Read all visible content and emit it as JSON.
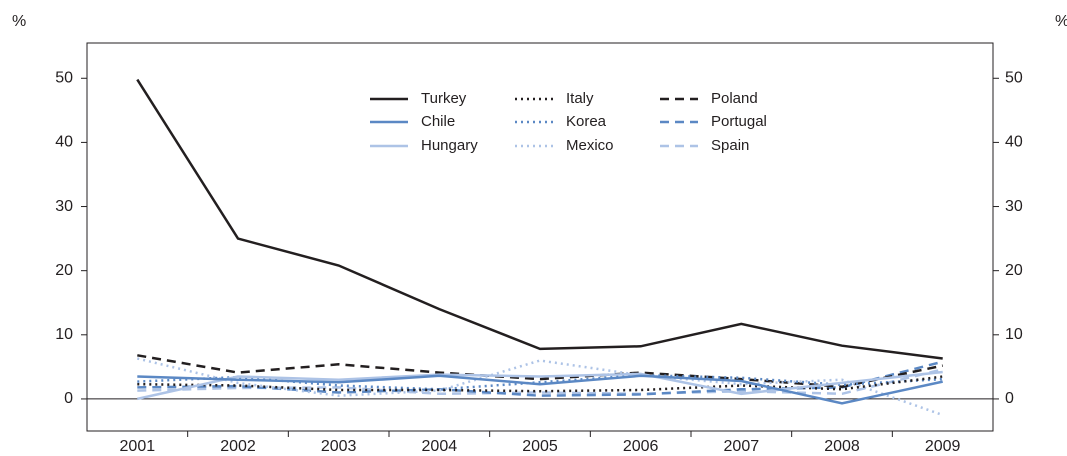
{
  "chart_data": {
    "type": "line",
    "y_label": "%",
    "y2_label": "%",
    "categories": [
      "2001",
      "2002",
      "2003",
      "2004",
      "2005",
      "2006",
      "2007",
      "2008",
      "2009"
    ],
    "ylim": [
      -5,
      55.5
    ],
    "yticks": [
      0,
      10,
      20,
      30,
      40,
      50
    ],
    "y2lim": [
      -5,
      55.5
    ],
    "y2ticks": [
      0,
      10,
      20,
      30,
      40,
      50
    ],
    "series": [
      {
        "name": "Turkey",
        "color": "#231f20",
        "dash": "solid",
        "values": [
          49.8,
          25,
          20.8,
          14,
          7.8,
          8.2,
          11.7,
          8.3,
          6.3
        ]
      },
      {
        "name": "Chile",
        "color": "#5b88c4",
        "dash": "solid",
        "values": [
          3.5,
          3,
          2.6,
          3.6,
          2.3,
          3.6,
          2.8,
          -0.7,
          2.7
        ]
      },
      {
        "name": "Hungary",
        "color": "#adc3e6",
        "dash": "solid",
        "values": [
          0,
          3.5,
          3,
          3.8,
          3.5,
          3.9,
          0.8,
          2.5,
          4.2
        ]
      },
      {
        "name": "Italy",
        "color": "#231f20",
        "dash": "dotted",
        "values": [
          2.3,
          2.1,
          1.4,
          1.4,
          1.2,
          1.4,
          2.1,
          1.5,
          3.5
        ]
      },
      {
        "name": "Korea",
        "color": "#5b88c4",
        "dash": "dotted",
        "values": [
          2.7,
          3.4,
          2.1,
          1.5,
          2.6,
          3.7,
          3.3,
          2.2,
          3.1
        ]
      },
      {
        "name": "Mexico",
        "color": "#adc3e6",
        "dash": "dotted",
        "values": [
          6.3,
          2.5,
          0.5,
          1.3,
          6,
          3.7,
          2.3,
          3,
          -2.5
        ]
      },
      {
        "name": "Poland",
        "color": "#231f20",
        "dash": "dashed",
        "values": [
          6.8,
          4.1,
          5.4,
          4.1,
          3.1,
          4.1,
          3.1,
          1.9,
          5.2
        ]
      },
      {
        "name": "Portugal",
        "color": "#5b88c4",
        "dash": "dashed",
        "values": [
          1.8,
          2,
          1,
          1.5,
          0.5,
          0.7,
          1.5,
          1.8,
          5.8
        ]
      },
      {
        "name": "Spain",
        "color": "#adc3e6",
        "dash": "dashed",
        "values": [
          1.3,
          1.7,
          1.8,
          0.8,
          1,
          0.8,
          1.2,
          0.8,
          4.6
        ]
      }
    ]
  }
}
